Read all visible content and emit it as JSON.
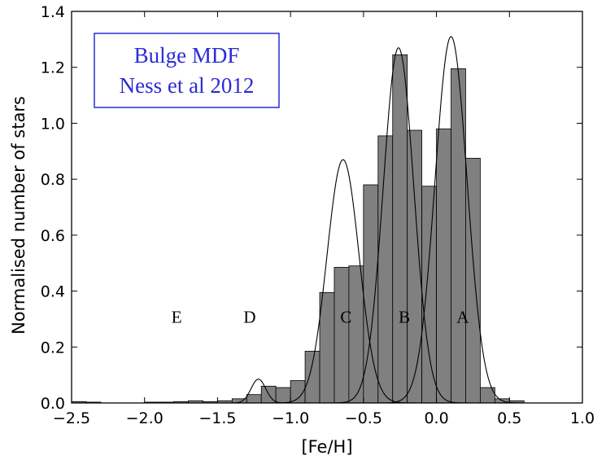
{
  "chart_data": {
    "type": "bar",
    "xlabel": "[Fe/H]",
    "ylabel": "Normalised number of stars",
    "xlim": [
      -2.5,
      1.0
    ],
    "ylim": [
      0.0,
      1.4
    ],
    "grid": false,
    "x_ticks": [
      "−2.5",
      "−2.0",
      "−1.5",
      "−1.0",
      "−0.5",
      "0.0",
      "0.5",
      "1.0"
    ],
    "y_ticks": [
      "0.0",
      "0.2",
      "0.4",
      "0.6",
      "0.8",
      "1.0",
      "1.2",
      "1.4"
    ],
    "annotation": {
      "line1": "Bulge MDF",
      "line2": "Ness et al 2012",
      "color": "#2b2bd6",
      "placement": "top-left"
    },
    "histogram": {
      "bin_width": 0.1,
      "fill_color": "#808080",
      "bins": [
        {
          "x0": -2.5,
          "value": 0.005
        },
        {
          "x0": -2.4,
          "value": 0.003
        },
        {
          "x0": -2.0,
          "value": 0.003
        },
        {
          "x0": -1.9,
          "value": 0.003
        },
        {
          "x0": -1.8,
          "value": 0.005
        },
        {
          "x0": -1.7,
          "value": 0.008
        },
        {
          "x0": -1.6,
          "value": 0.005
        },
        {
          "x0": -1.5,
          "value": 0.008
        },
        {
          "x0": -1.4,
          "value": 0.015
        },
        {
          "x0": -1.3,
          "value": 0.03
        },
        {
          "x0": -1.2,
          "value": 0.06
        },
        {
          "x0": -1.1,
          "value": 0.055
        },
        {
          "x0": -1.0,
          "value": 0.08
        },
        {
          "x0": -0.9,
          "value": 0.185
        },
        {
          "x0": -0.8,
          "value": 0.395
        },
        {
          "x0": -0.7,
          "value": 0.485
        },
        {
          "x0": -0.6,
          "value": 0.49
        },
        {
          "x0": -0.5,
          "value": 0.78
        },
        {
          "x0": -0.4,
          "value": 0.955
        },
        {
          "x0": -0.3,
          "value": 1.245
        },
        {
          "x0": -0.2,
          "value": 0.975
        },
        {
          "x0": -0.1,
          "value": 0.775
        },
        {
          "x0": 0.0,
          "value": 0.98
        },
        {
          "x0": 0.1,
          "value": 1.195
        },
        {
          "x0": 0.2,
          "value": 0.875
        },
        {
          "x0": 0.3,
          "value": 0.055
        },
        {
          "x0": 0.4,
          "value": 0.015
        },
        {
          "x0": 0.5,
          "value": 0.008
        }
      ]
    },
    "components": [
      {
        "name": "A",
        "mean": 0.1,
        "sigma": 0.11,
        "amplitude": 1.31
      },
      {
        "name": "B",
        "mean": -0.26,
        "sigma": 0.105,
        "amplitude": 1.27
      },
      {
        "name": "C",
        "mean": -0.64,
        "sigma": 0.11,
        "amplitude": 0.87
      },
      {
        "name": "D",
        "mean": -1.22,
        "sigma": 0.05,
        "amplitude": 0.085
      },
      {
        "name": "E",
        "mean": -1.8,
        "sigma": 0.1,
        "amplitude": 0.0
      }
    ],
    "component_labels": [
      {
        "text": "E",
        "x": -1.78,
        "y": 0.31
      },
      {
        "text": "D",
        "x": -1.28,
        "y": 0.31
      },
      {
        "text": "C",
        "x": -0.62,
        "y": 0.31
      },
      {
        "text": "B",
        "x": -0.22,
        "y": 0.31
      },
      {
        "text": "A",
        "x": 0.18,
        "y": 0.31
      }
    ]
  }
}
